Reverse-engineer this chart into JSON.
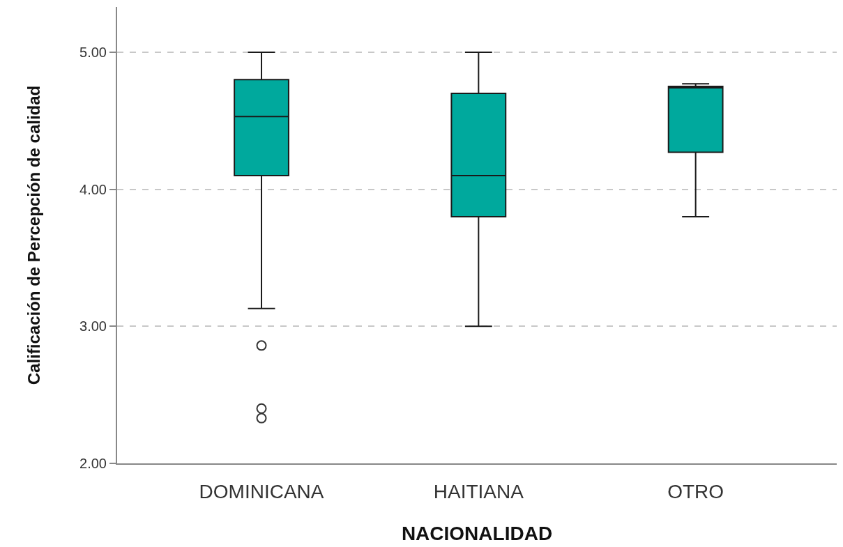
{
  "chart_data": {
    "type": "box",
    "xlabel": "NACIONALIDAD",
    "ylabel": "Calificación de Percepción de calidad",
    "categories": [
      "DOMINICANA",
      "HAITIANA",
      "OTRO"
    ],
    "series": [
      {
        "color": "#00a99d",
        "boxes": [
          {
            "low": 3.13,
            "q1": 4.1,
            "median": 4.53,
            "q3": 4.8,
            "high": 5.0,
            "outliers": [
              2.86,
              2.4,
              2.33
            ]
          },
          {
            "low": 3.0,
            "q1": 3.8,
            "median": 4.1,
            "q3": 4.7,
            "high": 5.0
          },
          {
            "low": 3.8,
            "q1": 4.27,
            "median": 4.74,
            "q3": 4.75,
            "high": 4.77
          }
        ]
      }
    ],
    "ylim": [
      2,
      5.33
    ],
    "yticks": [
      {
        "value": 2,
        "label": "2.00"
      },
      {
        "value": 3,
        "label": "3.00"
      },
      {
        "value": 4,
        "label": "4.00"
      },
      {
        "value": 5,
        "label": "5.00"
      }
    ],
    "grid": "y",
    "marker": "circle"
  }
}
